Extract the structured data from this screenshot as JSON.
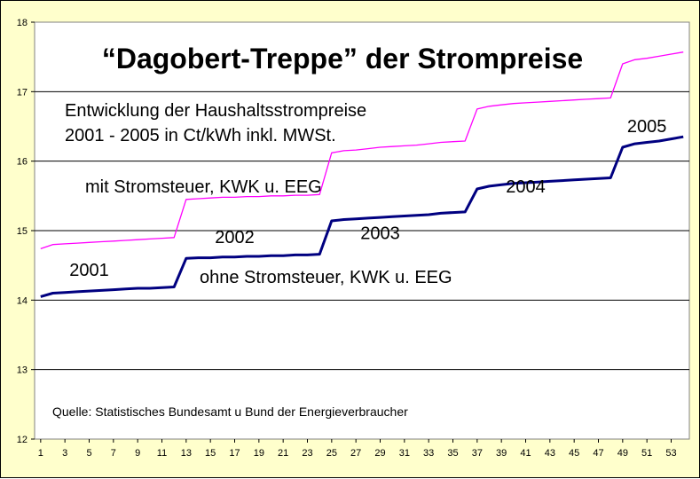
{
  "chart_data": {
    "type": "line",
    "title": "“Dagobert-Treppe” der Strompreise",
    "subtitle_lines": [
      "Entwicklung der Haushaltsstrompreise",
      "2001 - 2005 in Ct/kWh inkl. MWSt."
    ],
    "source": "Quelle: Statistisches Bundesamt u Bund der Energieverbraucher",
    "xlabel": "",
    "ylabel": "",
    "ylim": [
      12,
      18
    ],
    "y_ticks": [
      "12",
      "13",
      "14",
      "15",
      "16",
      "17",
      "18"
    ],
    "x_ticks": [
      "1",
      "3",
      "5",
      "7",
      "9",
      "11",
      "13",
      "15",
      "17",
      "19",
      "21",
      "23",
      "25",
      "27",
      "29",
      "31",
      "33",
      "35",
      "37",
      "39",
      "41",
      "43",
      "45",
      "47",
      "49",
      "51",
      "53"
    ],
    "grid": "horizontal",
    "series": [
      {
        "name": "mit Stromsteuer, KWK u. EEG",
        "color": "#ff00ff",
        "x": [
          1,
          2,
          3,
          4,
          5,
          6,
          7,
          8,
          9,
          10,
          11,
          12,
          13,
          14,
          15,
          16,
          17,
          18,
          19,
          20,
          21,
          22,
          23,
          24,
          25,
          26,
          27,
          28,
          29,
          30,
          31,
          32,
          33,
          34,
          35,
          36,
          37,
          38,
          39,
          40,
          41,
          42,
          43,
          44,
          45,
          46,
          47,
          48,
          49,
          50,
          51,
          52,
          53,
          54
        ],
        "values": [
          14.74,
          14.8,
          14.81,
          14.82,
          14.83,
          14.84,
          14.85,
          14.86,
          14.87,
          14.88,
          14.89,
          14.9,
          15.45,
          15.46,
          15.47,
          15.48,
          15.48,
          15.49,
          15.49,
          15.5,
          15.5,
          15.51,
          15.51,
          15.52,
          16.12,
          16.15,
          16.16,
          16.18,
          16.2,
          16.21,
          16.22,
          16.23,
          16.25,
          16.27,
          16.28,
          16.29,
          16.75,
          16.79,
          16.81,
          16.83,
          16.84,
          16.85,
          16.86,
          16.87,
          16.88,
          16.89,
          16.9,
          16.91,
          17.4,
          17.46,
          17.48,
          17.51,
          17.54,
          17.57
        ]
      },
      {
        "name": "ohne Stromsteuer, KWK u. EEG",
        "color": "#000080",
        "x": [
          1,
          2,
          3,
          4,
          5,
          6,
          7,
          8,
          9,
          10,
          11,
          12,
          13,
          14,
          15,
          16,
          17,
          18,
          19,
          20,
          21,
          22,
          23,
          24,
          25,
          26,
          27,
          28,
          29,
          30,
          31,
          32,
          33,
          34,
          35,
          36,
          37,
          38,
          39,
          40,
          41,
          42,
          43,
          44,
          45,
          46,
          47,
          48,
          49,
          50,
          51,
          52,
          53,
          54
        ],
        "values": [
          14.05,
          14.1,
          14.11,
          14.12,
          14.13,
          14.14,
          14.15,
          14.16,
          14.17,
          14.17,
          14.18,
          14.19,
          14.6,
          14.61,
          14.61,
          14.62,
          14.62,
          14.63,
          14.63,
          14.64,
          14.64,
          14.65,
          14.65,
          14.66,
          15.14,
          15.16,
          15.17,
          15.18,
          15.19,
          15.2,
          15.21,
          15.22,
          15.23,
          15.25,
          15.26,
          15.27,
          15.6,
          15.64,
          15.66,
          15.68,
          15.69,
          15.7,
          15.71,
          15.72,
          15.73,
          15.74,
          15.75,
          15.76,
          16.2,
          16.25,
          16.27,
          16.29,
          16.32,
          16.35
        ]
      }
    ],
    "annotations": {
      "series_top_label": "mit Stromsteuer, KWK u. EEG",
      "series_bottom_label": "ohne Stromsteuer, KWK u. EEG",
      "years": [
        {
          "text": "2001",
          "x": 5,
          "y": 14.35
        },
        {
          "text": "2002",
          "x": 17,
          "y": 14.82
        },
        {
          "text": "2003",
          "x": 29,
          "y": 14.88
        },
        {
          "text": "2004",
          "x": 41,
          "y": 15.55
        },
        {
          "text": "2005",
          "x": 51,
          "y": 16.42
        }
      ]
    }
  }
}
